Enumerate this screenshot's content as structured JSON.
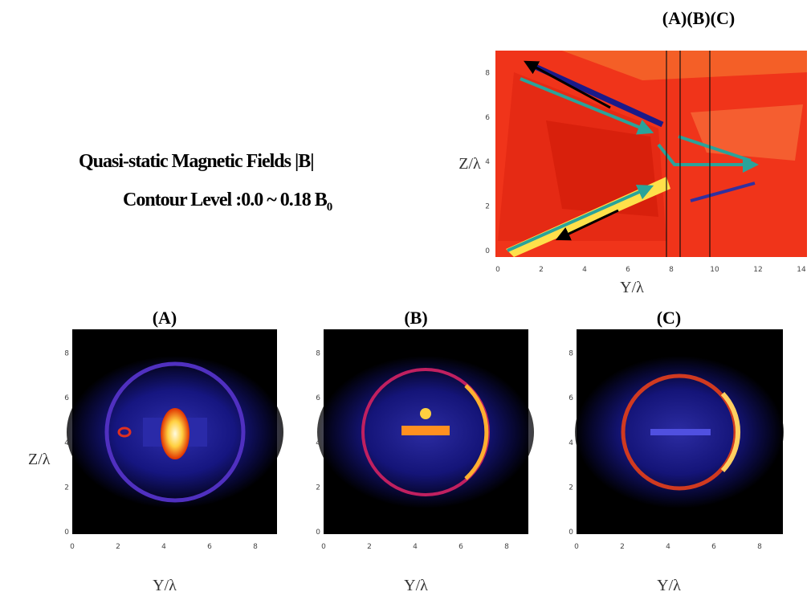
{
  "header": {
    "title": "Quasi-static Magnetic Fields |B|",
    "contour": "Contour Level :0.0 ~ 0.18 B",
    "contour_sub": "0"
  },
  "top_plot": {
    "cut_labels": "(A)(B)(C)",
    "xlabel": "Y/λ",
    "ylabel": "Z/λ",
    "xticks": [
      0,
      2,
      4,
      6,
      8,
      10,
      12,
      14
    ],
    "yticks": [
      0,
      2,
      4,
      6,
      8
    ]
  },
  "bottom": {
    "ylabel": "Z/λ",
    "panels": [
      {
        "label": "(A)",
        "xlabel": "Y/λ",
        "xticks": [
          0,
          2,
          4,
          6,
          8
        ],
        "yticks": [
          0,
          2,
          4,
          6,
          8
        ]
      },
      {
        "label": "(B)",
        "xlabel": "Y/λ",
        "xticks": [
          0,
          2,
          4,
          6,
          8
        ],
        "yticks": [
          0,
          2,
          4,
          6,
          8
        ]
      },
      {
        "label": "(C)",
        "xlabel": "Y/λ",
        "xticks": [
          0,
          2,
          4,
          6,
          8
        ],
        "yticks": [
          0,
          2,
          4,
          6,
          8
        ]
      }
    ]
  }
}
